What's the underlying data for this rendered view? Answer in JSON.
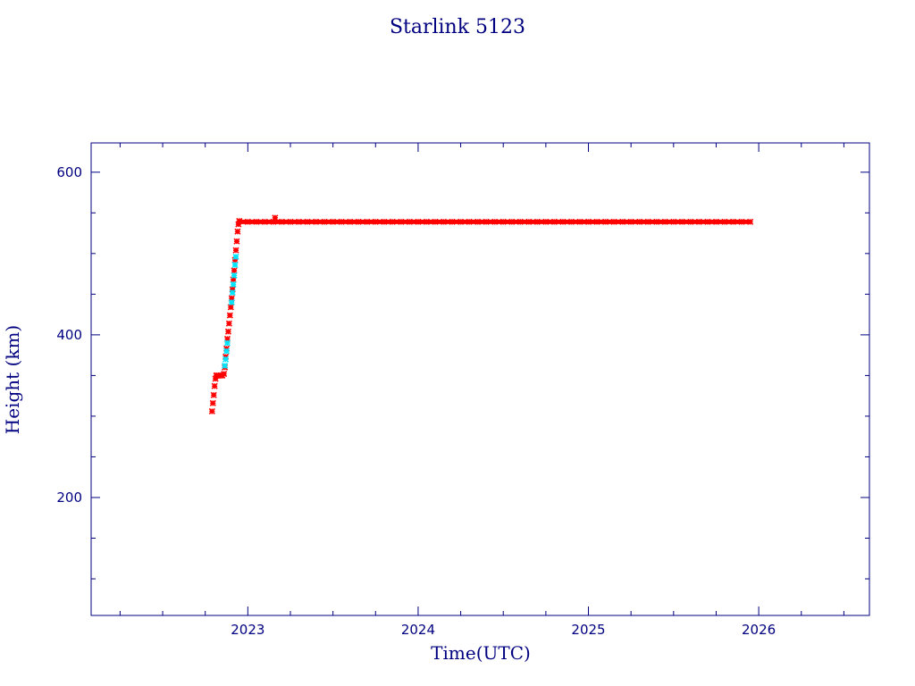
{
  "chart_data": {
    "type": "scatter",
    "title": "Starlink 5123",
    "xlabel": "Time(UTC)",
    "ylabel": "Height (km)",
    "xlim": [
      2022.08,
      2026.65
    ],
    "ylim": [
      55,
      636
    ],
    "x_ticks": [
      2023,
      2024,
      2025,
      2026
    ],
    "x_tick_labels": [
      "2023",
      "2024",
      "2025",
      "2026"
    ],
    "y_ticks": [
      200,
      400,
      600
    ],
    "y_tick_labels": [
      "200",
      "400",
      "600"
    ],
    "grid": false,
    "legend": "none",
    "colors": {
      "axis": "#000080",
      "primary_points": "#ff0000",
      "secondary_points": "#00e5ff"
    },
    "series": [
      {
        "color": "#ff0000",
        "marker": "star",
        "points": [
          [
            2022.79,
            306
          ],
          [
            2022.795,
            316
          ],
          [
            2022.8,
            326
          ],
          [
            2022.805,
            337
          ],
          [
            2022.81,
            346
          ],
          [
            2022.815,
            350
          ],
          [
            2022.82,
            350
          ],
          [
            2022.83,
            350
          ],
          [
            2022.84,
            350
          ],
          [
            2022.85,
            350
          ],
          [
            2022.86,
            352
          ],
          [
            2022.865,
            360
          ],
          [
            2022.87,
            373
          ],
          [
            2022.875,
            383
          ],
          [
            2022.88,
            395
          ],
          [
            2022.885,
            404
          ],
          [
            2022.89,
            414
          ],
          [
            2022.895,
            424
          ],
          [
            2022.9,
            434
          ],
          [
            2022.905,
            445
          ],
          [
            2022.91,
            456
          ],
          [
            2022.915,
            468
          ],
          [
            2022.92,
            479
          ],
          [
            2022.925,
            492
          ],
          [
            2022.93,
            504
          ],
          [
            2022.935,
            515
          ],
          [
            2022.94,
            527
          ],
          [
            2022.945,
            536
          ],
          [
            2022.95,
            540
          ],
          [
            2023.0,
            539
          ],
          [
            2023.05,
            539
          ],
          [
            2023.1,
            539
          ],
          [
            2023.15,
            539
          ],
          [
            2023.16,
            544
          ],
          [
            2023.2,
            539
          ],
          [
            2023.25,
            539
          ],
          [
            2023.3,
            539
          ],
          [
            2023.35,
            539
          ],
          [
            2023.4,
            539
          ],
          [
            2023.45,
            539
          ],
          [
            2023.5,
            539
          ],
          [
            2023.55,
            539
          ],
          [
            2023.6,
            539
          ],
          [
            2023.65,
            539
          ],
          [
            2023.7,
            539
          ],
          [
            2023.75,
            539
          ],
          [
            2023.8,
            539
          ],
          [
            2023.85,
            539
          ],
          [
            2023.9,
            539
          ],
          [
            2023.95,
            539
          ],
          [
            2024.0,
            539
          ],
          [
            2024.05,
            539
          ],
          [
            2024.1,
            539
          ],
          [
            2024.15,
            539
          ],
          [
            2024.2,
            539
          ],
          [
            2024.25,
            539
          ],
          [
            2024.3,
            539
          ],
          [
            2024.35,
            539
          ],
          [
            2024.4,
            539
          ],
          [
            2024.45,
            539
          ],
          [
            2024.5,
            539
          ],
          [
            2024.55,
            539
          ],
          [
            2024.6,
            539
          ],
          [
            2024.65,
            539
          ],
          [
            2024.7,
            539
          ],
          [
            2024.75,
            539
          ],
          [
            2024.8,
            539
          ],
          [
            2024.85,
            539
          ],
          [
            2024.9,
            539
          ],
          [
            2024.95,
            539
          ],
          [
            2025.0,
            539
          ],
          [
            2025.05,
            539
          ],
          [
            2025.1,
            539
          ],
          [
            2025.15,
            539
          ],
          [
            2025.2,
            539
          ],
          [
            2025.25,
            539
          ],
          [
            2025.3,
            539
          ],
          [
            2025.35,
            539
          ],
          [
            2025.4,
            539
          ],
          [
            2025.45,
            539
          ],
          [
            2025.5,
            539
          ],
          [
            2025.55,
            539
          ],
          [
            2025.6,
            539
          ],
          [
            2025.65,
            539
          ],
          [
            2025.7,
            539
          ],
          [
            2025.75,
            539
          ],
          [
            2025.8,
            539
          ],
          [
            2025.85,
            539
          ],
          [
            2025.9,
            539
          ],
          [
            2025.95,
            539
          ]
        ]
      },
      {
        "color": "#00e5ff",
        "marker": "star",
        "points": [
          [
            2022.865,
            362
          ],
          [
            2022.87,
            370
          ],
          [
            2022.875,
            380
          ],
          [
            2022.88,
            390
          ],
          [
            2022.905,
            440
          ],
          [
            2022.91,
            452
          ],
          [
            2022.915,
            462
          ],
          [
            2022.92,
            473
          ],
          [
            2022.925,
            486
          ],
          [
            2022.93,
            496
          ]
        ]
      }
    ]
  }
}
